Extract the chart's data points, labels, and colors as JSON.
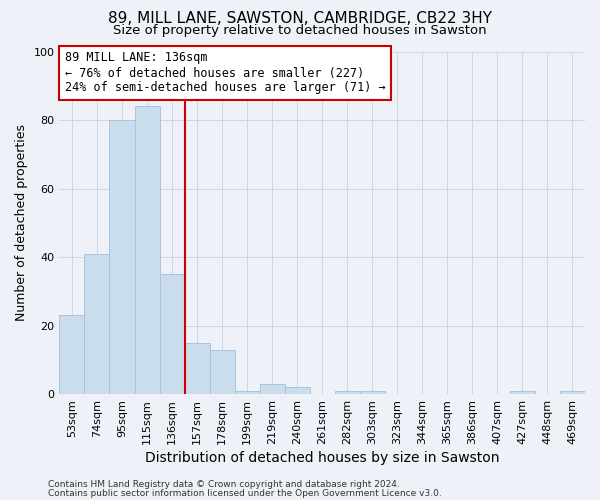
{
  "title": "89, MILL LANE, SAWSTON, CAMBRIDGE, CB22 3HY",
  "subtitle": "Size of property relative to detached houses in Sawston",
  "xlabel": "Distribution of detached houses by size in Sawston",
  "ylabel": "Number of detached properties",
  "bar_labels": [
    "53sqm",
    "74sqm",
    "95sqm",
    "115sqm",
    "136sqm",
    "157sqm",
    "178sqm",
    "199sqm",
    "219sqm",
    "240sqm",
    "261sqm",
    "282sqm",
    "303sqm",
    "323sqm",
    "344sqm",
    "365sqm",
    "386sqm",
    "407sqm",
    "427sqm",
    "448sqm",
    "469sqm"
  ],
  "bar_heights": [
    23,
    41,
    80,
    84,
    35,
    15,
    13,
    1,
    3,
    2,
    0,
    1,
    1,
    0,
    0,
    0,
    0,
    0,
    1,
    0,
    1
  ],
  "bar_color": "#c9dded",
  "bar_edgecolor": "#a8c4de",
  "bar_width": 1.0,
  "vline_x_index": 4,
  "vline_color": "#cc0000",
  "annotation_line1": "89 MILL LANE: 136sqm",
  "annotation_line2": "← 76% of detached houses are smaller (227)",
  "annotation_line3": "24% of semi-detached houses are larger (71) →",
  "annotation_box_edgecolor": "#cc0000",
  "annotation_box_facecolor": "white",
  "ylim": [
    0,
    100
  ],
  "yticks": [
    0,
    20,
    40,
    60,
    80,
    100
  ],
  "grid_color": "#ccd6e8",
  "background_color": "#eef2f8",
  "footer_line1": "Contains HM Land Registry data © Crown copyright and database right 2024.",
  "footer_line2": "Contains public sector information licensed under the Open Government Licence v3.0.",
  "title_fontsize": 11,
  "subtitle_fontsize": 9.5,
  "xlabel_fontsize": 10,
  "ylabel_fontsize": 9,
  "tick_fontsize": 8,
  "annotation_fontsize": 8.5,
  "footer_fontsize": 6.5
}
